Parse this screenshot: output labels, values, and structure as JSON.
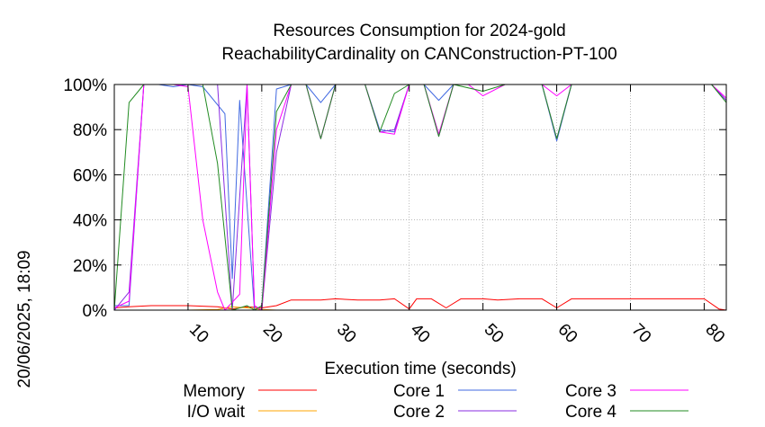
{
  "chart_data": {
    "type": "line",
    "title_lines": [
      "Resources Consumption for 2024-gold",
      "ReachabilityCardinality on CANConstruction-PT-100"
    ],
    "xlabel": "Execution time (seconds)",
    "ylabel": "",
    "side_label": "20/06/2025, 18:09",
    "xlim": [
      0,
      83
    ],
    "ylim": [
      0,
      100
    ],
    "x_ticks": [
      10,
      20,
      30,
      40,
      50,
      60,
      70,
      80
    ],
    "x_tick_labels": [
      "10",
      "20",
      "30",
      "40",
      "50",
      "60",
      "70",
      "80"
    ],
    "y_ticks": [
      0,
      20,
      40,
      60,
      80,
      100
    ],
    "y_tick_labels": [
      "0%",
      "20%",
      "40%",
      "60%",
      "80%",
      "100%"
    ],
    "grid": true,
    "legend_placement": "bottom",
    "series": [
      {
        "name": "Memory",
        "color": "#ff0000",
        "points": [
          [
            0,
            1
          ],
          [
            2,
            1.5
          ],
          [
            5,
            2
          ],
          [
            10,
            2
          ],
          [
            14,
            1.5
          ],
          [
            16,
            0.5
          ],
          [
            18,
            1.5
          ],
          [
            20,
            1
          ],
          [
            22,
            2
          ],
          [
            24,
            4.5
          ],
          [
            28,
            4.5
          ],
          [
            30,
            5
          ],
          [
            33,
            4.5
          ],
          [
            36,
            4.5
          ],
          [
            38,
            5
          ],
          [
            40,
            0.5
          ],
          [
            41,
            5
          ],
          [
            43,
            5
          ],
          [
            45,
            1
          ],
          [
            47,
            5
          ],
          [
            50,
            5
          ],
          [
            52,
            4.5
          ],
          [
            55,
            5
          ],
          [
            58,
            5
          ],
          [
            60,
            1
          ],
          [
            62,
            5
          ],
          [
            65,
            5
          ],
          [
            68,
            5
          ],
          [
            70,
            5
          ],
          [
            73,
            5
          ],
          [
            76,
            5
          ],
          [
            80,
            5
          ],
          [
            82,
            0.5
          ],
          [
            83,
            0
          ]
        ]
      },
      {
        "name": "I/O wait",
        "color": "#ffa500",
        "points": [
          [
            0,
            0
          ],
          [
            10,
            0
          ],
          [
            14,
            0.3
          ],
          [
            16,
            1.5
          ],
          [
            18,
            1
          ],
          [
            20,
            0.3
          ],
          [
            22,
            0
          ],
          [
            83,
            0
          ]
        ]
      },
      {
        "name": "Core 1",
        "color": "#4169e1",
        "points": [
          [
            0,
            2
          ],
          [
            2,
            2
          ],
          [
            4,
            100
          ],
          [
            6,
            100
          ],
          [
            8,
            99
          ],
          [
            10,
            100
          ],
          [
            12,
            99
          ],
          [
            15,
            87
          ],
          [
            16,
            14
          ],
          [
            17,
            93
          ],
          [
            19,
            0
          ],
          [
            20,
            2
          ],
          [
            22,
            98
          ],
          [
            24,
            100
          ],
          [
            26,
            100
          ],
          [
            28,
            92
          ],
          [
            30,
            100
          ],
          [
            34,
            100
          ],
          [
            36,
            80
          ],
          [
            38,
            79
          ],
          [
            40,
            100
          ],
          [
            42,
            100
          ],
          [
            44,
            93
          ],
          [
            46,
            100
          ],
          [
            50,
            100
          ],
          [
            53,
            100
          ],
          [
            56,
            100
          ],
          [
            58,
            100
          ],
          [
            60,
            75
          ],
          [
            62,
            100
          ],
          [
            66,
            100
          ],
          [
            70,
            100
          ],
          [
            74,
            100
          ],
          [
            78,
            100
          ],
          [
            81,
            100
          ],
          [
            83,
            93
          ]
        ]
      },
      {
        "name": "Core 2",
        "color": "#8a2be2",
        "points": [
          [
            0,
            0
          ],
          [
            2,
            8
          ],
          [
            4,
            100
          ],
          [
            6,
            100
          ],
          [
            8,
            100
          ],
          [
            10,
            100
          ],
          [
            12,
            100
          ],
          [
            14,
            100
          ],
          [
            16,
            0
          ],
          [
            18,
            100
          ],
          [
            19,
            2
          ],
          [
            20,
            0
          ],
          [
            22,
            70
          ],
          [
            24,
            100
          ],
          [
            26,
            100
          ],
          [
            28,
            76
          ],
          [
            30,
            100
          ],
          [
            34,
            100
          ],
          [
            36,
            79
          ],
          [
            38,
            80
          ],
          [
            40,
            100
          ],
          [
            42,
            100
          ],
          [
            44,
            77
          ],
          [
            46,
            100
          ],
          [
            50,
            100
          ],
          [
            53,
            100
          ],
          [
            56,
            100
          ],
          [
            58,
            100
          ],
          [
            60,
            76
          ],
          [
            62,
            100
          ],
          [
            66,
            100
          ],
          [
            70,
            100
          ],
          [
            74,
            100
          ],
          [
            78,
            100
          ],
          [
            81,
            100
          ],
          [
            83,
            93
          ]
        ]
      },
      {
        "name": "Core 3",
        "color": "#ff00ff",
        "points": [
          [
            0,
            1
          ],
          [
            2,
            4
          ],
          [
            4,
            100
          ],
          [
            6,
            100
          ],
          [
            8,
            100
          ],
          [
            10,
            99
          ],
          [
            12,
            40
          ],
          [
            14,
            8
          ],
          [
            15,
            0
          ],
          [
            17,
            7
          ],
          [
            18,
            100
          ],
          [
            19,
            2
          ],
          [
            20,
            0
          ],
          [
            22,
            80
          ],
          [
            24,
            100
          ],
          [
            26,
            100
          ],
          [
            28,
            76
          ],
          [
            30,
            100
          ],
          [
            34,
            100
          ],
          [
            36,
            79
          ],
          [
            38,
            78
          ],
          [
            40,
            100
          ],
          [
            42,
            100
          ],
          [
            44,
            78
          ],
          [
            46,
            100
          ],
          [
            48,
            100
          ],
          [
            50,
            95
          ],
          [
            53,
            100
          ],
          [
            56,
            100
          ],
          [
            58,
            100
          ],
          [
            60,
            95
          ],
          [
            62,
            100
          ],
          [
            66,
            100
          ],
          [
            70,
            100
          ],
          [
            74,
            100
          ],
          [
            78,
            100
          ],
          [
            81,
            100
          ],
          [
            83,
            94
          ]
        ]
      },
      {
        "name": "Core 4",
        "color": "#228b22",
        "points": [
          [
            0,
            0
          ],
          [
            2,
            92
          ],
          [
            4,
            100
          ],
          [
            6,
            100
          ],
          [
            8,
            100
          ],
          [
            10,
            100
          ],
          [
            12,
            100
          ],
          [
            14,
            65
          ],
          [
            16,
            0
          ],
          [
            18,
            2
          ],
          [
            19,
            0
          ],
          [
            20,
            2
          ],
          [
            22,
            88
          ],
          [
            24,
            100
          ],
          [
            26,
            100
          ],
          [
            28,
            76
          ],
          [
            30,
            100
          ],
          [
            34,
            100
          ],
          [
            36,
            79
          ],
          [
            38,
            96
          ],
          [
            40,
            100
          ],
          [
            42,
            100
          ],
          [
            44,
            77
          ],
          [
            46,
            100
          ],
          [
            50,
            97
          ],
          [
            53,
            100
          ],
          [
            56,
            100
          ],
          [
            58,
            100
          ],
          [
            60,
            76
          ],
          [
            62,
            100
          ],
          [
            66,
            100
          ],
          [
            70,
            100
          ],
          [
            74,
            100
          ],
          [
            78,
            100
          ],
          [
            81,
            100
          ],
          [
            83,
            92
          ]
        ]
      }
    ]
  }
}
